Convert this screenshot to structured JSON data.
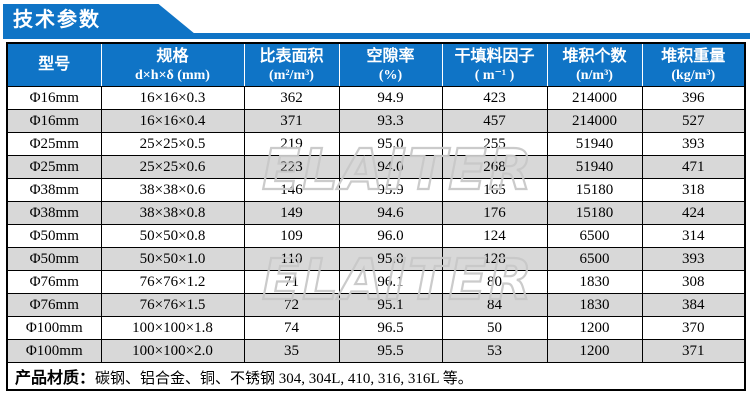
{
  "banner": {
    "title": "技术参数"
  },
  "table": {
    "columns": [
      {
        "label": "型号",
        "sub": ""
      },
      {
        "label": "规格",
        "sub": "d×h×δ (mm)"
      },
      {
        "label": "比表面积",
        "sub": "(m²/m³)"
      },
      {
        "label": "空隙率",
        "sub": "(%)"
      },
      {
        "label": "干填料因子",
        "sub": "( m⁻¹ )"
      },
      {
        "label": "堆积个数",
        "sub": "(n/m³)"
      },
      {
        "label": "堆积重量",
        "sub": "(kg/m³)"
      }
    ],
    "rows": [
      [
        "Φ16mm",
        "16×16×0.3",
        "362",
        "94.9",
        "423",
        "214000",
        "396"
      ],
      [
        "Φ16mm",
        "16×16×0.4",
        "371",
        "93.3",
        "457",
        "214000",
        "527"
      ],
      [
        "Φ25mm",
        "25×25×0.5",
        "219",
        "95.0",
        "255",
        "51940",
        "393"
      ],
      [
        "Φ25mm",
        "25×25×0.6",
        "223",
        "94.0",
        "268",
        "51940",
        "471"
      ],
      [
        "Φ38mm",
        "38×38×0.6",
        "146",
        "95.9",
        "165",
        "15180",
        "318"
      ],
      [
        "Φ38mm",
        "38×38×0.8",
        "149",
        "94.6",
        "176",
        "15180",
        "424"
      ],
      [
        "Φ50mm",
        "50×50×0.8",
        "109",
        "96.0",
        "124",
        "6500",
        "314"
      ],
      [
        "Φ50mm",
        "50×50×1.0",
        "110",
        "95.0",
        "128",
        "6500",
        "393"
      ],
      [
        "Φ76mm",
        "76×76×1.2",
        "71",
        "96.1",
        "80",
        "1830",
        "308"
      ],
      [
        "Φ76mm",
        "76×76×1.5",
        "72",
        "95.1",
        "84",
        "1830",
        "384"
      ],
      [
        "Φ100mm",
        "100×100×1.8",
        "74",
        "96.5",
        "50",
        "1200",
        "370"
      ],
      [
        "Φ100mm",
        "100×100×2.0",
        "35",
        "95.5",
        "53",
        "1200",
        "371"
      ]
    ],
    "footer": {
      "label": "产品材质：",
      "text": "碳钢、铝合金、铜、不锈钢 304, 304L, 410, 316, 316L 等。"
    }
  },
  "watermark": {
    "text": "ELAITER"
  },
  "colors": {
    "accent_blue": "#0f74c6",
    "row_alt_gray": "#d8d8d8",
    "watermark_gray": "#c9c9c9"
  }
}
